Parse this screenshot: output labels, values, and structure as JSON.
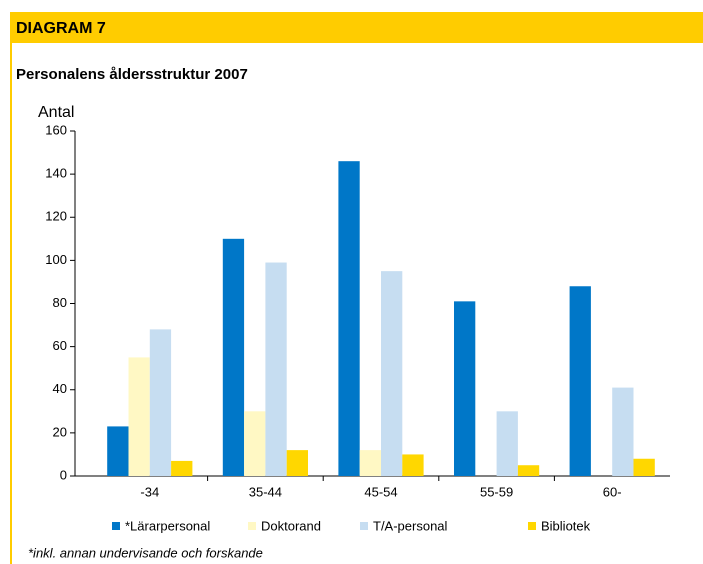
{
  "header": "DIAGRAM 7",
  "chart_data": {
    "type": "bar",
    "title": "Personalens åldersstruktur 2007",
    "y_label": "Antal",
    "categories": [
      "-34",
      "35-44",
      "45-54",
      "55-59",
      "60-"
    ],
    "series": [
      {
        "name": "*Lärarpersonal",
        "color": "#0077c8",
        "values": [
          23,
          110,
          146,
          81,
          88
        ]
      },
      {
        "name": "Doktorand",
        "color": "#fff8c4",
        "values": [
          55,
          30,
          12,
          0,
          0
        ]
      },
      {
        "name": "T/A-personal",
        "color": "#c6ddf1",
        "values": [
          68,
          99,
          95,
          30,
          41
        ]
      },
      {
        "name": "Bibliotek",
        "color": "#ffd700",
        "values": [
          7,
          12,
          10,
          5,
          8
        ]
      }
    ],
    "ylim": [
      0,
      160
    ],
    "yticks": [
      0,
      20,
      40,
      60,
      80,
      100,
      120,
      140,
      160
    ],
    "grid": false,
    "footnote": "*inkl. annan undervisande och forskande"
  }
}
